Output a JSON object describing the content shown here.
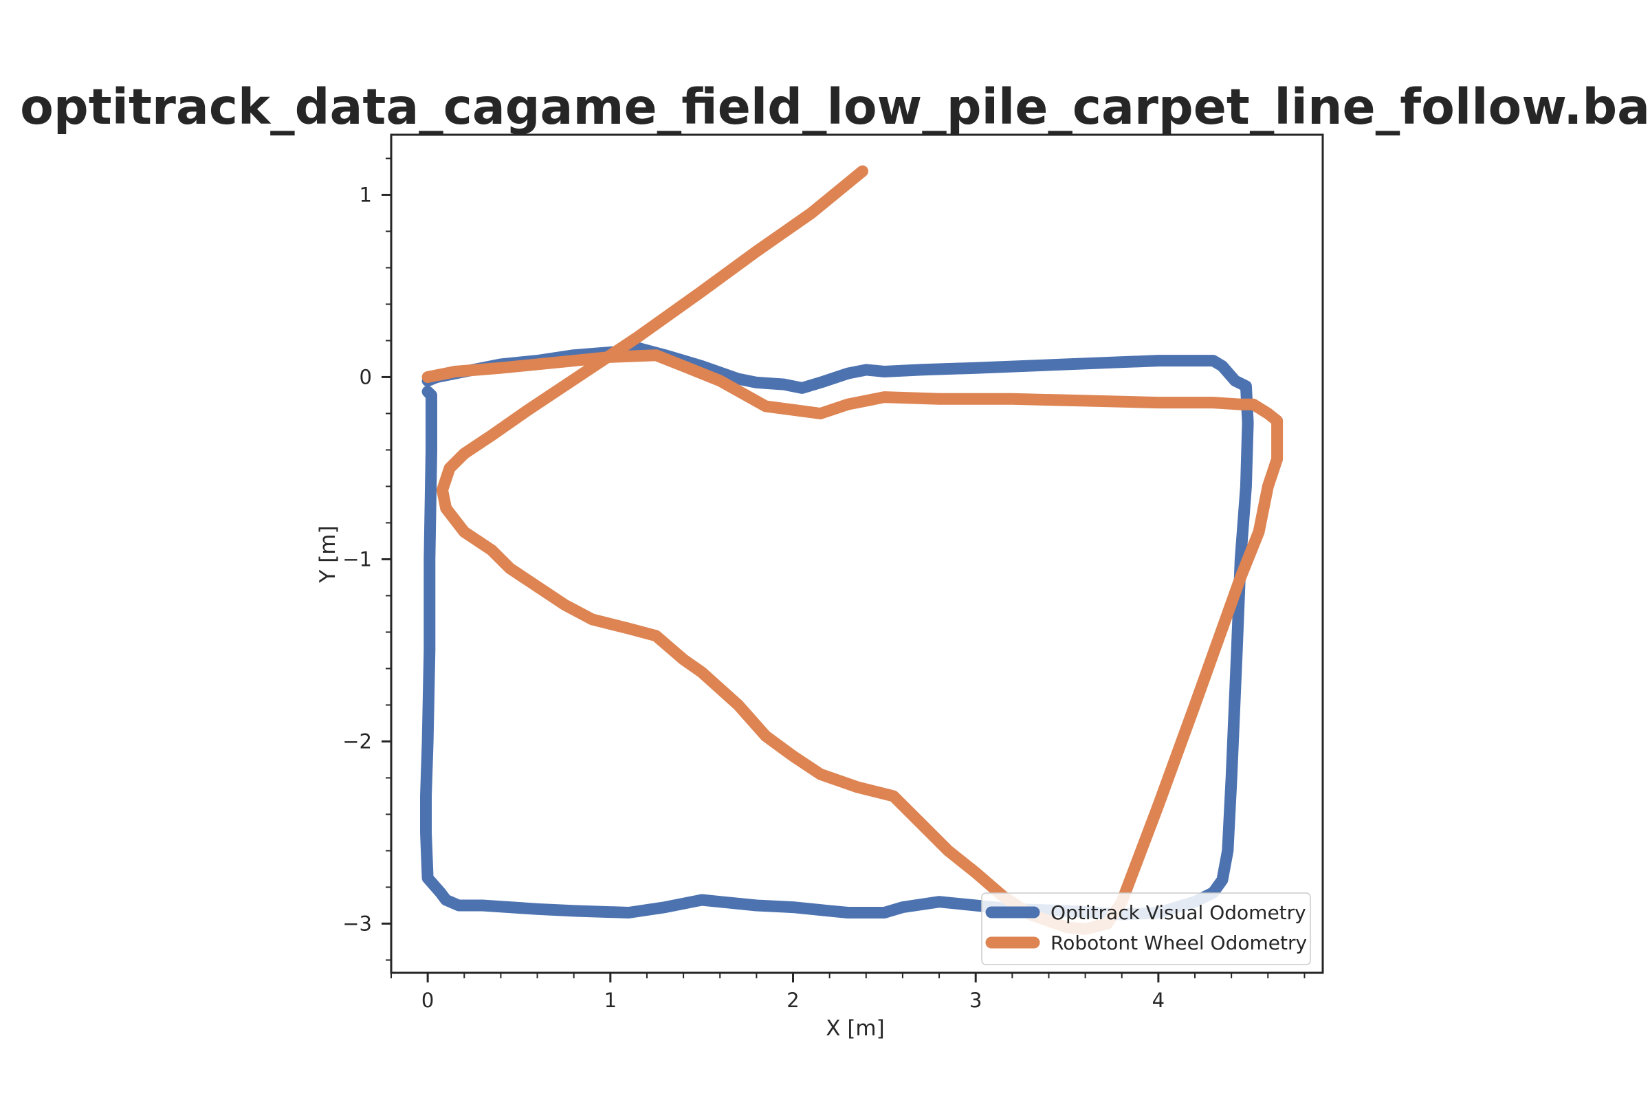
{
  "chart_data": {
    "type": "line",
    "title": "optitrack_data_cagame_field_low_pile_carpet_line_follow.bag",
    "xlabel": "X [m]",
    "ylabel": "Y [m]",
    "xlim": [
      -0.2,
      4.9
    ],
    "ylim": [
      -3.27,
      1.33
    ],
    "x_ticks": [
      0,
      1,
      2,
      3,
      4
    ],
    "y_ticks": [
      1,
      0,
      -1,
      -2,
      -3
    ],
    "x_tick_labels": [
      "0",
      "1",
      "2",
      "3",
      "4"
    ],
    "y_tick_labels": [
      "1",
      "0",
      "−1",
      "−2",
      "−3"
    ],
    "grid": false,
    "legend_position": "lower-right",
    "series": [
      {
        "name": "Optitrack Visual Odometry",
        "color": "#4c72b0",
        "points": [
          [
            0.0,
            -0.08
          ],
          [
            0.02,
            -0.1
          ],
          [
            0.02,
            -0.4
          ],
          [
            0.01,
            -1.0
          ],
          [
            0.01,
            -1.5
          ],
          [
            0.0,
            -2.0
          ],
          [
            -0.01,
            -2.3
          ],
          [
            -0.01,
            -2.5
          ],
          [
            0.0,
            -2.75
          ],
          [
            0.07,
            -2.83
          ],
          [
            0.1,
            -2.87
          ],
          [
            0.17,
            -2.9
          ],
          [
            0.3,
            -2.9
          ],
          [
            0.45,
            -2.91
          ],
          [
            0.6,
            -2.92
          ],
          [
            0.8,
            -2.93
          ],
          [
            1.1,
            -2.94
          ],
          [
            1.3,
            -2.91
          ],
          [
            1.5,
            -2.87
          ],
          [
            1.6,
            -2.88
          ],
          [
            1.8,
            -2.9
          ],
          [
            2.0,
            -2.91
          ],
          [
            2.2,
            -2.93
          ],
          [
            2.3,
            -2.94
          ],
          [
            2.5,
            -2.94
          ],
          [
            2.6,
            -2.91
          ],
          [
            2.8,
            -2.88
          ],
          [
            3.0,
            -2.9
          ],
          [
            3.2,
            -2.92
          ],
          [
            3.5,
            -2.93
          ],
          [
            3.8,
            -2.95
          ],
          [
            4.0,
            -2.94
          ],
          [
            4.1,
            -2.91
          ],
          [
            4.2,
            -2.88
          ],
          [
            4.3,
            -2.83
          ],
          [
            4.35,
            -2.76
          ],
          [
            4.38,
            -2.6
          ],
          [
            4.4,
            -2.2
          ],
          [
            4.43,
            -1.5
          ],
          [
            4.45,
            -1.0
          ],
          [
            4.48,
            -0.6
          ],
          [
            4.49,
            -0.25
          ],
          [
            4.48,
            -0.05
          ],
          [
            4.42,
            -0.02
          ],
          [
            4.35,
            0.06
          ],
          [
            4.3,
            0.09
          ],
          [
            4.2,
            0.09
          ],
          [
            4.0,
            0.09
          ],
          [
            3.5,
            0.07
          ],
          [
            3.0,
            0.05
          ],
          [
            2.7,
            0.04
          ],
          [
            2.5,
            0.03
          ],
          [
            2.4,
            0.04
          ],
          [
            2.3,
            0.02
          ],
          [
            2.15,
            -0.03
          ],
          [
            2.05,
            -0.06
          ],
          [
            1.95,
            -0.04
          ],
          [
            1.8,
            -0.03
          ],
          [
            1.7,
            -0.01
          ],
          [
            1.5,
            0.06
          ],
          [
            1.3,
            0.12
          ],
          [
            1.15,
            0.16
          ],
          [
            1.05,
            0.14
          ],
          [
            0.8,
            0.12
          ],
          [
            0.6,
            0.09
          ],
          [
            0.4,
            0.07
          ],
          [
            0.2,
            0.03
          ],
          [
            0.05,
            0.0
          ],
          [
            0.0,
            -0.02
          ]
        ]
      },
      {
        "name": "Robotont Wheel Odometry",
        "color": "#dd8452",
        "points": [
          [
            0.0,
            0.0
          ],
          [
            0.15,
            0.03
          ],
          [
            0.4,
            0.05
          ],
          [
            0.7,
            0.08
          ],
          [
            1.0,
            0.11
          ],
          [
            1.25,
            0.12
          ],
          [
            1.4,
            0.06
          ],
          [
            1.6,
            -0.02
          ],
          [
            1.85,
            -0.16
          ],
          [
            2.0,
            -0.18
          ],
          [
            2.15,
            -0.2
          ],
          [
            2.3,
            -0.15
          ],
          [
            2.5,
            -0.11
          ],
          [
            2.8,
            -0.12
          ],
          [
            3.2,
            -0.12
          ],
          [
            3.6,
            -0.13
          ],
          [
            4.0,
            -0.14
          ],
          [
            4.3,
            -0.14
          ],
          [
            4.45,
            -0.15
          ],
          [
            4.52,
            -0.15
          ],
          [
            4.6,
            -0.2
          ],
          [
            4.65,
            -0.24
          ],
          [
            4.65,
            -0.45
          ],
          [
            4.6,
            -0.6
          ],
          [
            4.55,
            -0.85
          ],
          [
            4.45,
            -1.1
          ],
          [
            4.2,
            -1.8
          ],
          [
            4.0,
            -2.35
          ],
          [
            3.8,
            -2.88
          ],
          [
            3.72,
            -3.0
          ],
          [
            3.6,
            -3.03
          ],
          [
            3.5,
            -3.02
          ],
          [
            3.3,
            -2.95
          ],
          [
            3.15,
            -2.85
          ],
          [
            3.0,
            -2.72
          ],
          [
            2.85,
            -2.6
          ],
          [
            2.7,
            -2.45
          ],
          [
            2.55,
            -2.3
          ],
          [
            2.35,
            -2.25
          ],
          [
            2.15,
            -2.18
          ],
          [
            2.0,
            -2.08
          ],
          [
            1.85,
            -1.97
          ],
          [
            1.7,
            -1.8
          ],
          [
            1.5,
            -1.62
          ],
          [
            1.4,
            -1.55
          ],
          [
            1.25,
            -1.42
          ],
          [
            1.1,
            -1.38
          ],
          [
            0.9,
            -1.33
          ],
          [
            0.75,
            -1.25
          ],
          [
            0.6,
            -1.15
          ],
          [
            0.45,
            -1.05
          ],
          [
            0.35,
            -0.95
          ],
          [
            0.2,
            -0.85
          ],
          [
            0.1,
            -0.72
          ],
          [
            0.08,
            -0.62
          ],
          [
            0.12,
            -0.5
          ],
          [
            0.2,
            -0.42
          ],
          [
            0.35,
            -0.32
          ],
          [
            0.55,
            -0.18
          ],
          [
            0.85,
            0.02
          ],
          [
            1.15,
            0.22
          ],
          [
            1.5,
            0.47
          ],
          [
            1.8,
            0.69
          ],
          [
            2.1,
            0.9
          ],
          [
            2.38,
            1.13
          ]
        ]
      }
    ]
  }
}
